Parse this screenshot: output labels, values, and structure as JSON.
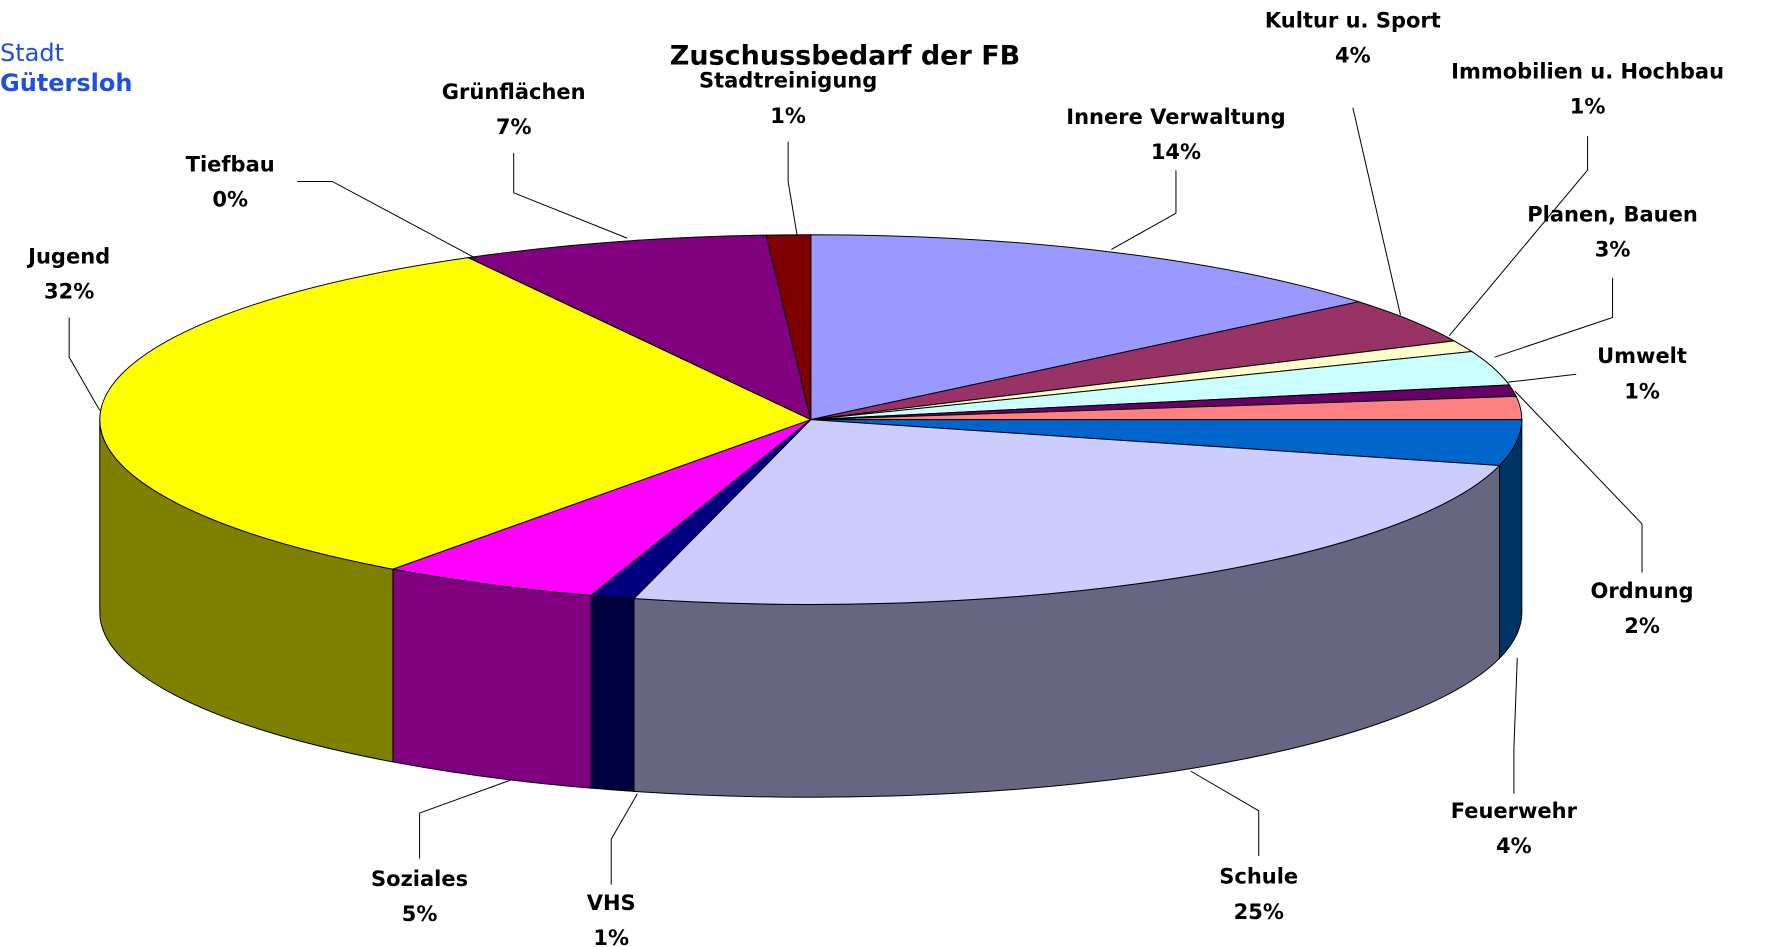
{
  "logo": [
    "Stadt",
    "Gütersloh"
  ],
  "chart_data": {
    "type": "pie3d",
    "title": "Zuschussbedarf der FB",
    "categories": [
      "Innere Verwaltung",
      "Kultur u. Sport",
      "Immobilien u. Hochbau",
      "Planen, Bauen",
      "Umwelt",
      "Ordnung",
      "Feuerwehr",
      "Schule",
      "VHS",
      "Soziales",
      "Jugend",
      "Tiefbau",
      "Grünflächen",
      "Stadtreinigung"
    ],
    "values": [
      14,
      4,
      1,
      3,
      1,
      2,
      4,
      25,
      1,
      5,
      32,
      0,
      7,
      1
    ],
    "value_labels": [
      "14%",
      "4%",
      "1%",
      "3%",
      "1%",
      "2%",
      "4%",
      "25%",
      "1%",
      "5%",
      "32%",
      "0%",
      "7%",
      "1%"
    ],
    "colors": [
      "#9999ff",
      "#993366",
      "#ffffcc",
      "#ccffff",
      "#660066",
      "#ff8080",
      "#0066cc",
      "#ccccff",
      "#000080",
      "#ff00ff",
      "#ffff00",
      "#00ffff",
      "#800080",
      "#800000"
    ]
  }
}
